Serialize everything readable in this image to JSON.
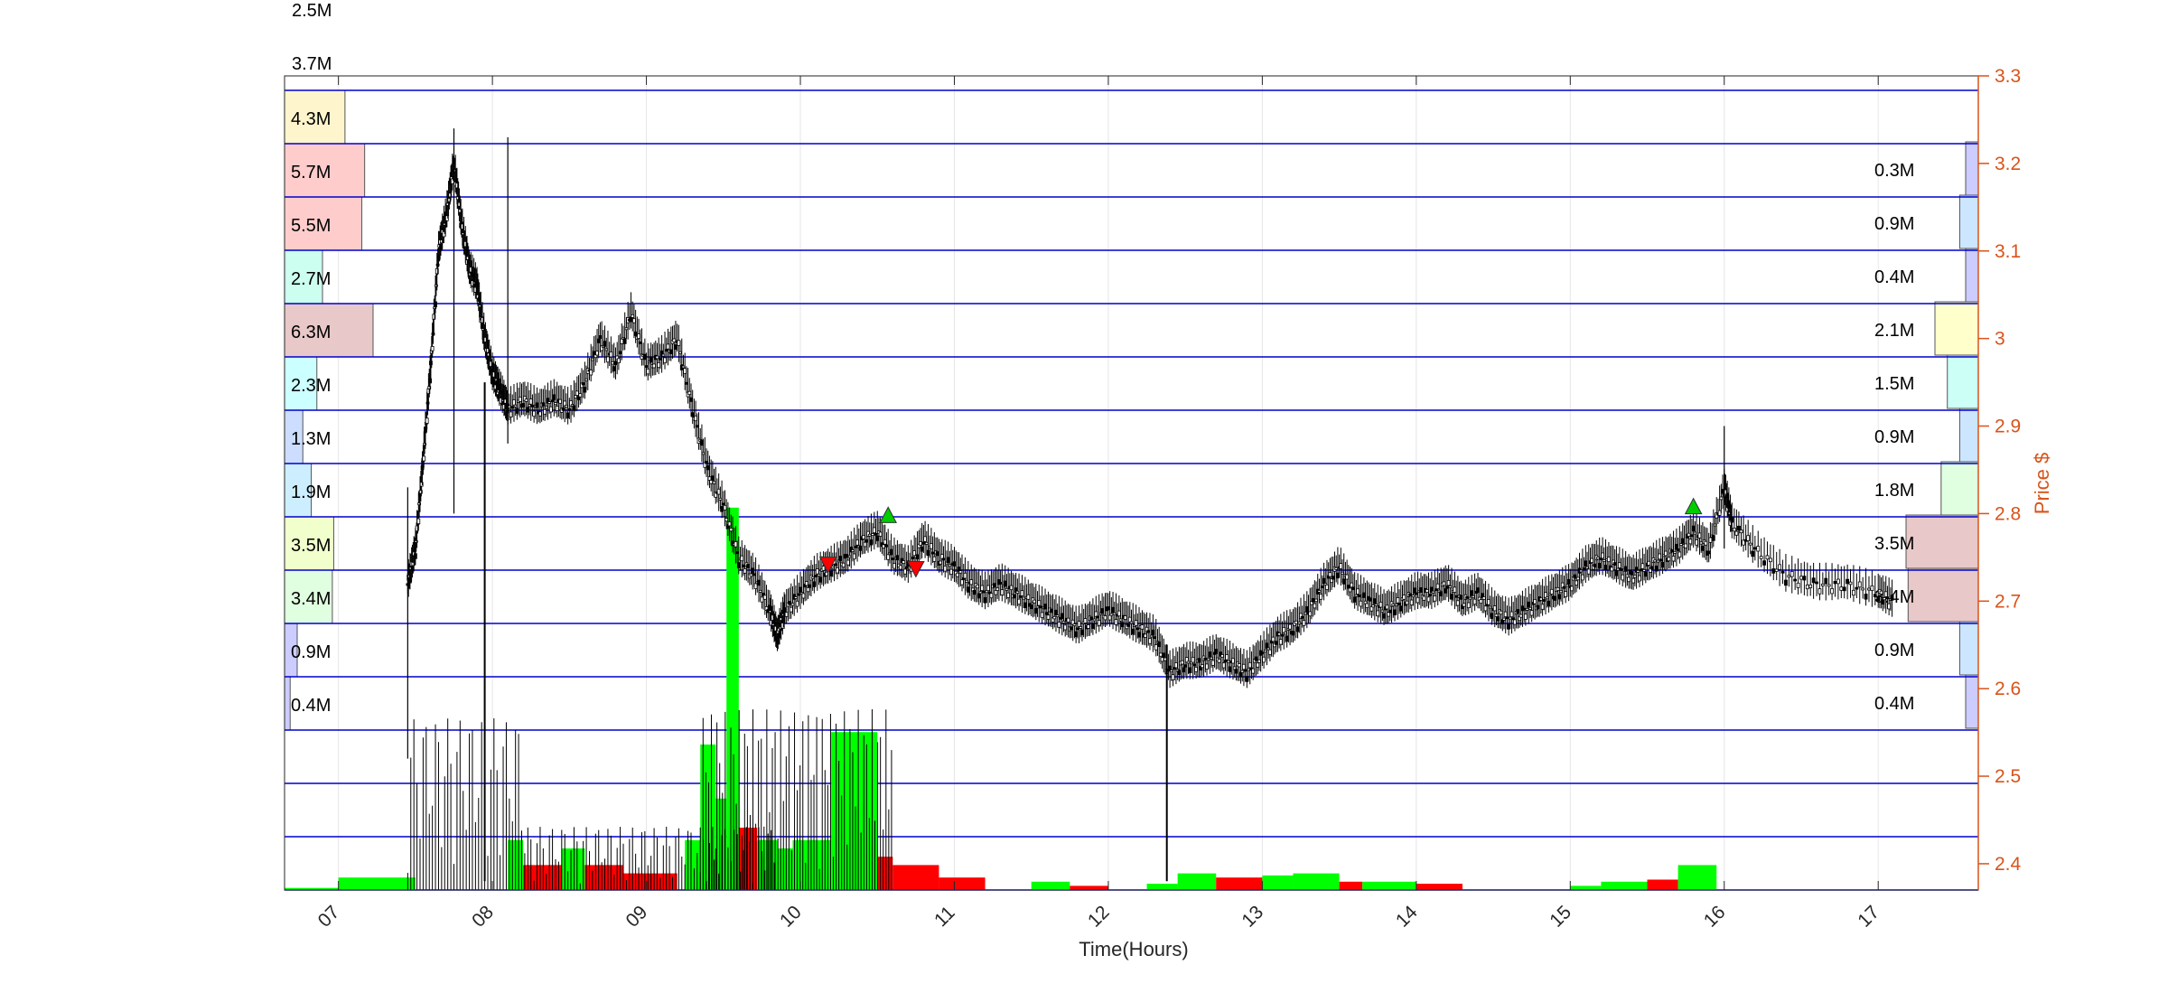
{
  "chart_data": {
    "type": "candlestick",
    "xlabel": "Time(Hours)",
    "ylabel": "Price $",
    "x_ticks": [
      "07",
      "08",
      "09",
      "10",
      "11",
      "12",
      "13",
      "14",
      "15",
      "16",
      "17"
    ],
    "x_range": [
      6.65,
      17.65
    ],
    "y_ticks": [
      2.4,
      2.5,
      2.6,
      2.7,
      2.8,
      2.9,
      3.0,
      3.1,
      3.2,
      3.3
    ],
    "ylim": [
      2.37,
      3.3
    ],
    "grid": true,
    "colors": {
      "price_axis": "#D95319",
      "band_lines": "#0000CC",
      "candles": "#000000",
      "volume_up": "#00FF00",
      "volume_down": "#FF0000",
      "buy_marker": "#00CC00",
      "sell_marker": "#FF0000"
    },
    "top_labels": [
      "2.5M",
      "3.7M"
    ],
    "volume_profile_left": [
      {
        "label": "4.3M",
        "value": 4.3,
        "color": "#FFF5CC"
      },
      {
        "label": "5.7M",
        "value": 5.7,
        "color": "#FFCCCC"
      },
      {
        "label": "5.5M",
        "value": 5.5,
        "color": "#FFCCCC"
      },
      {
        "label": "2.7M",
        "value": 2.7,
        "color": "#CCFFF0"
      },
      {
        "label": "6.3M",
        "value": 6.3,
        "color": "#E8C8C8"
      },
      {
        "label": "2.3M",
        "value": 2.3,
        "color": "#CCFFFF"
      },
      {
        "label": "1.3M",
        "value": 1.3,
        "color": "#CCDDFF"
      },
      {
        "label": "1.9M",
        "value": 1.9,
        "color": "#CCEEFF"
      },
      {
        "label": "3.5M",
        "value": 3.5,
        "color": "#F0FFCC"
      },
      {
        "label": "3.4M",
        "value": 3.4,
        "color": "#E0FFE0"
      },
      {
        "label": "0.9M",
        "value": 0.9,
        "color": "#CCCCFF"
      },
      {
        "label": "0.4M",
        "value": 0.4,
        "color": "#CCCCFF"
      }
    ],
    "volume_profile_right": [
      {
        "label": "0.3M",
        "value": 0.3,
        "color": "#CCCCFF"
      },
      {
        "label": "0.9M",
        "value": 0.9,
        "color": "#CCE6FF"
      },
      {
        "label": "0.4M",
        "value": 0.4,
        "color": "#CCCCFF"
      },
      {
        "label": "2.1M",
        "value": 2.1,
        "color": "#FFFFCC"
      },
      {
        "label": "1.5M",
        "value": 1.5,
        "color": "#CCFFF5"
      },
      {
        "label": "0.9M",
        "value": 0.9,
        "color": "#CCE6FF"
      },
      {
        "label": "1.8M",
        "value": 1.8,
        "color": "#E0FFE0"
      },
      {
        "label": "3.5M",
        "value": 3.5,
        "color": "#E8C8C8"
      },
      {
        "label": "3.4M",
        "value": 3.4,
        "color": "#E8C8C8"
      },
      {
        "label": "0.9M",
        "value": 0.9,
        "color": "#CCE6FF"
      },
      {
        "label": "0.4M",
        "value": 0.4,
        "color": "#CCCCFF"
      }
    ],
    "price_path": [
      [
        7.45,
        2.72
      ],
      [
        7.5,
        2.76
      ],
      [
        7.55,
        2.86
      ],
      [
        7.6,
        2.97
      ],
      [
        7.65,
        3.1
      ],
      [
        7.7,
        3.14
      ],
      [
        7.75,
        3.2
      ],
      [
        7.8,
        3.13
      ],
      [
        7.85,
        3.08
      ],
      [
        7.9,
        3.06
      ],
      [
        7.95,
        3.0
      ],
      [
        8.0,
        2.96
      ],
      [
        8.05,
        2.94
      ],
      [
        8.1,
        2.92
      ],
      [
        8.2,
        2.93
      ],
      [
        8.3,
        2.92
      ],
      [
        8.4,
        2.93
      ],
      [
        8.5,
        2.92
      ],
      [
        8.6,
        2.95
      ],
      [
        8.7,
        3.0
      ],
      [
        8.8,
        2.97
      ],
      [
        8.9,
        3.03
      ],
      [
        9.0,
        2.97
      ],
      [
        9.1,
        2.98
      ],
      [
        9.2,
        3.0
      ],
      [
        9.3,
        2.92
      ],
      [
        9.4,
        2.85
      ],
      [
        9.5,
        2.81
      ],
      [
        9.6,
        2.75
      ],
      [
        9.7,
        2.73
      ],
      [
        9.8,
        2.69
      ],
      [
        9.85,
        2.66
      ],
      [
        9.9,
        2.69
      ],
      [
        10.0,
        2.71
      ],
      [
        10.1,
        2.73
      ],
      [
        10.2,
        2.74
      ],
      [
        10.3,
        2.75
      ],
      [
        10.4,
        2.77
      ],
      [
        10.5,
        2.78
      ],
      [
        10.6,
        2.75
      ],
      [
        10.7,
        2.74
      ],
      [
        10.8,
        2.77
      ],
      [
        10.9,
        2.75
      ],
      [
        11.0,
        2.74
      ],
      [
        11.1,
        2.72
      ],
      [
        11.2,
        2.71
      ],
      [
        11.3,
        2.72
      ],
      [
        11.4,
        2.71
      ],
      [
        11.5,
        2.7
      ],
      [
        11.6,
        2.69
      ],
      [
        11.7,
        2.68
      ],
      [
        11.8,
        2.67
      ],
      [
        11.9,
        2.68
      ],
      [
        12.0,
        2.69
      ],
      [
        12.1,
        2.68
      ],
      [
        12.2,
        2.67
      ],
      [
        12.3,
        2.66
      ],
      [
        12.4,
        2.62
      ],
      [
        12.5,
        2.63
      ],
      [
        12.6,
        2.63
      ],
      [
        12.7,
        2.64
      ],
      [
        12.8,
        2.63
      ],
      [
        12.9,
        2.62
      ],
      [
        13.0,
        2.64
      ],
      [
        13.1,
        2.66
      ],
      [
        13.2,
        2.67
      ],
      [
        13.3,
        2.69
      ],
      [
        13.4,
        2.72
      ],
      [
        13.5,
        2.74
      ],
      [
        13.6,
        2.71
      ],
      [
        13.7,
        2.7
      ],
      [
        13.8,
        2.69
      ],
      [
        13.9,
        2.7
      ],
      [
        14.0,
        2.71
      ],
      [
        14.1,
        2.71
      ],
      [
        14.2,
        2.72
      ],
      [
        14.3,
        2.7
      ],
      [
        14.4,
        2.71
      ],
      [
        14.5,
        2.69
      ],
      [
        14.6,
        2.68
      ],
      [
        14.7,
        2.69
      ],
      [
        14.8,
        2.7
      ],
      [
        14.9,
        2.71
      ],
      [
        15.0,
        2.72
      ],
      [
        15.1,
        2.74
      ],
      [
        15.2,
        2.75
      ],
      [
        15.3,
        2.74
      ],
      [
        15.4,
        2.73
      ],
      [
        15.5,
        2.74
      ],
      [
        15.6,
        2.75
      ],
      [
        15.7,
        2.76
      ],
      [
        15.8,
        2.78
      ],
      [
        15.9,
        2.76
      ],
      [
        16.0,
        2.83
      ],
      [
        16.05,
        2.79
      ],
      [
        16.2,
        2.76
      ],
      [
        16.4,
        2.73
      ],
      [
        16.6,
        2.72
      ],
      [
        16.8,
        2.72
      ],
      [
        17.0,
        2.71
      ],
      [
        17.1,
        2.7
      ]
    ],
    "price_spikes": [
      {
        "x": 7.45,
        "low": 2.52,
        "high": 2.83
      },
      {
        "x": 7.75,
        "low": 2.8,
        "high": 3.24
      },
      {
        "x": 8.1,
        "low": 2.88,
        "high": 3.23
      },
      {
        "x": 16.0,
        "low": 2.76,
        "high": 2.9
      }
    ],
    "price_dips": [
      {
        "x": 7.95,
        "low": 2.38,
        "high": 2.95
      },
      {
        "x": 12.38,
        "low": 2.38,
        "high": 2.65
      }
    ],
    "volume_bars": [
      {
        "x0": 6.65,
        "x1": 7.0,
        "value": 0.005,
        "dir": "up"
      },
      {
        "x0": 7.0,
        "x1": 7.5,
        "value": 0.03,
        "dir": "up"
      },
      {
        "x0": 8.1,
        "x1": 8.2,
        "value": 0.12,
        "dir": "up"
      },
      {
        "x0": 8.2,
        "x1": 8.45,
        "value": 0.06,
        "dir": "down"
      },
      {
        "x0": 8.45,
        "x1": 8.6,
        "value": 0.1,
        "dir": "up"
      },
      {
        "x0": 8.6,
        "x1": 8.85,
        "value": 0.06,
        "dir": "down"
      },
      {
        "x0": 8.85,
        "x1": 9.2,
        "value": 0.04,
        "dir": "down"
      },
      {
        "x0": 9.25,
        "x1": 9.35,
        "value": 0.12,
        "dir": "up"
      },
      {
        "x0": 9.35,
        "x1": 9.45,
        "value": 0.35,
        "dir": "up"
      },
      {
        "x0": 9.45,
        "x1": 9.52,
        "value": 0.22,
        "dir": "up"
      },
      {
        "x0": 9.52,
        "x1": 9.6,
        "value": 0.92,
        "dir": "up"
      },
      {
        "x0": 9.6,
        "x1": 9.72,
        "value": 0.15,
        "dir": "down"
      },
      {
        "x0": 9.72,
        "x1": 9.85,
        "value": 0.12,
        "dir": "up"
      },
      {
        "x0": 9.85,
        "x1": 9.95,
        "value": 0.1,
        "dir": "up"
      },
      {
        "x0": 9.95,
        "x1": 10.2,
        "value": 0.12,
        "dir": "up"
      },
      {
        "x0": 10.2,
        "x1": 10.5,
        "value": 0.38,
        "dir": "up"
      },
      {
        "x0": 10.5,
        "x1": 10.6,
        "value": 0.08,
        "dir": "down"
      },
      {
        "x0": 10.6,
        "x1": 10.9,
        "value": 0.06,
        "dir": "down"
      },
      {
        "x0": 10.9,
        "x1": 11.2,
        "value": 0.03,
        "dir": "down"
      },
      {
        "x0": 11.5,
        "x1": 11.75,
        "value": 0.02,
        "dir": "up"
      },
      {
        "x0": 11.75,
        "x1": 12.0,
        "value": 0.01,
        "dir": "down"
      },
      {
        "x0": 12.25,
        "x1": 12.45,
        "value": 0.015,
        "dir": "up"
      },
      {
        "x0": 12.45,
        "x1": 12.7,
        "value": 0.04,
        "dir": "up"
      },
      {
        "x0": 12.7,
        "x1": 13.0,
        "value": 0.03,
        "dir": "down"
      },
      {
        "x0": 13.0,
        "x1": 13.2,
        "value": 0.035,
        "dir": "up"
      },
      {
        "x0": 13.2,
        "x1": 13.5,
        "value": 0.04,
        "dir": "up"
      },
      {
        "x0": 13.5,
        "x1": 13.65,
        "value": 0.02,
        "dir": "down"
      },
      {
        "x0": 13.65,
        "x1": 14.0,
        "value": 0.02,
        "dir": "up"
      },
      {
        "x0": 14.0,
        "x1": 14.3,
        "value": 0.015,
        "dir": "down"
      },
      {
        "x0": 15.0,
        "x1": 15.2,
        "value": 0.01,
        "dir": "up"
      },
      {
        "x0": 15.2,
        "x1": 15.5,
        "value": 0.02,
        "dir": "up"
      },
      {
        "x0": 15.5,
        "x1": 15.7,
        "value": 0.025,
        "dir": "down"
      },
      {
        "x0": 15.7,
        "x1": 15.95,
        "value": 0.06,
        "dir": "up"
      }
    ],
    "markers": [
      {
        "x": 10.18,
        "y": 2.742,
        "type": "sell"
      },
      {
        "x": 10.57,
        "y": 2.798,
        "type": "buy"
      },
      {
        "x": 10.75,
        "y": 2.737,
        "type": "sell"
      },
      {
        "x": 15.8,
        "y": 2.808,
        "type": "buy"
      }
    ]
  }
}
